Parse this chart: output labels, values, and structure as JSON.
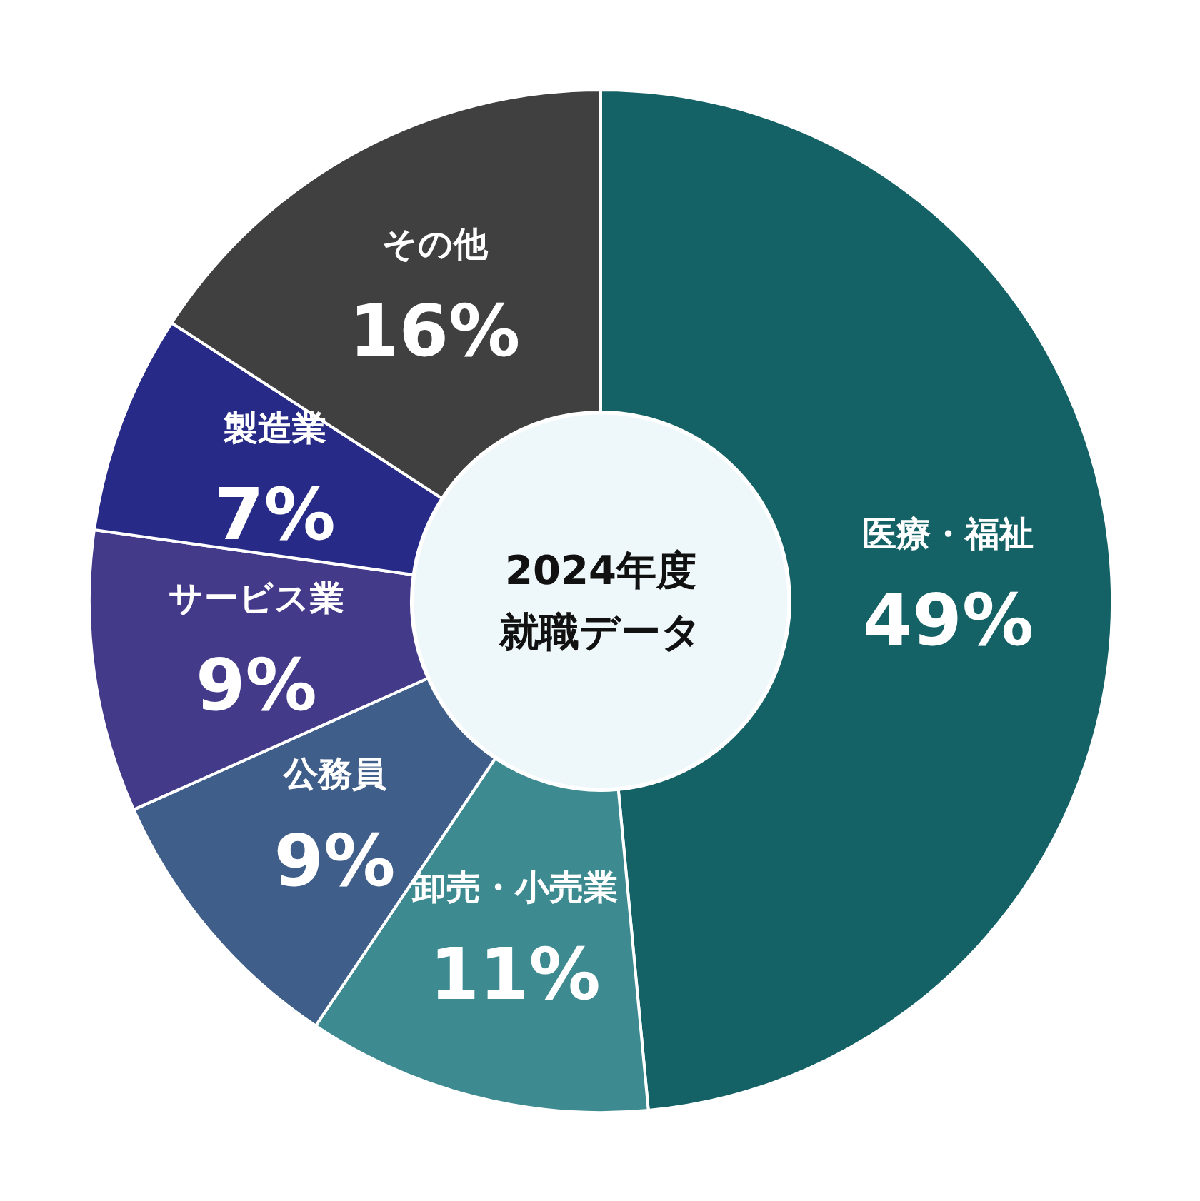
{
  "chart_data": {
    "type": "donut",
    "title": "2024年度就職データ",
    "categories": [
      "医療・福祉",
      "卸売・小売業",
      "公務員",
      "サービス業",
      "製造業",
      "その他"
    ],
    "values": [
      49,
      11,
      9,
      9,
      7,
      16
    ],
    "value_labels": [
      "49%",
      "11%",
      "9%",
      "9%",
      "7%",
      "16%"
    ],
    "colors": [
      "#156266",
      "#3d8b90",
      "#3f5f8a",
      "#433a8a",
      "#272a87",
      "#404040"
    ]
  }
}
